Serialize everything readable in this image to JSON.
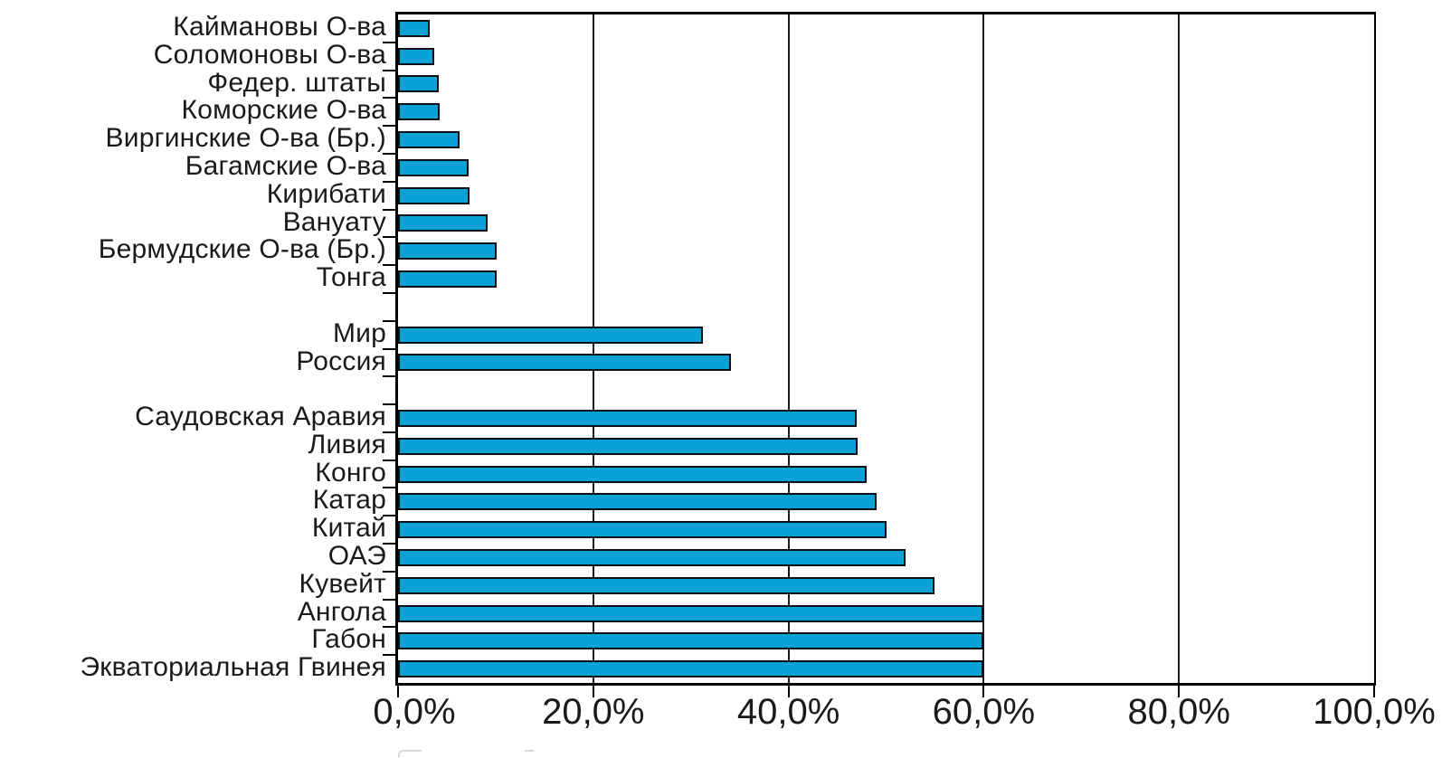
{
  "chart_data": {
    "type": "bar",
    "orientation": "horizontal",
    "title": "",
    "xlabel": "",
    "ylabel": "",
    "unit": "percent",
    "xlim": [
      0,
      100
    ],
    "grid": "vertical-gridlines-every-20pct",
    "legend": "none",
    "bar_color": "#0aa1d7",
    "bar_border_color": "#0c1117",
    "x_ticks": [
      {
        "value": 0,
        "label": "0,0%"
      },
      {
        "value": 20,
        "label": "20,0%"
      },
      {
        "value": 40,
        "label": "40,0%"
      },
      {
        "value": 60,
        "label": "60,0%"
      },
      {
        "value": 80,
        "label": "80,0%"
      },
      {
        "value": 100,
        "label": "100,0%"
      }
    ],
    "rows": [
      {
        "label": "Каймановы О-ва",
        "value": 3.2,
        "spacer": false
      },
      {
        "label": "Соломоновы О-ва",
        "value": 3.7,
        "spacer": false
      },
      {
        "label": "Федер. штаты",
        "value": 4.2,
        "spacer": false
      },
      {
        "label": "Коморские О-ва",
        "value": 4.3,
        "spacer": false
      },
      {
        "label": "Виргинские О-ва (Бр.)",
        "value": 6.3,
        "spacer": false
      },
      {
        "label": "Багамские О-ва",
        "value": 7.2,
        "spacer": false
      },
      {
        "label": "Кирибати",
        "value": 7.3,
        "spacer": false
      },
      {
        "label": "Вануату",
        "value": 9.2,
        "spacer": false
      },
      {
        "label": "Бермудские О-ва (Бр.)",
        "value": 10.1,
        "spacer": false
      },
      {
        "label": "Тонга",
        "value": 10.1,
        "spacer": false
      },
      {
        "label": "",
        "value": null,
        "spacer": true
      },
      {
        "label": "Мир",
        "value": 31.2,
        "spacer": false
      },
      {
        "label": "Россия",
        "value": 34.1,
        "spacer": false
      },
      {
        "label": "",
        "value": null,
        "spacer": true
      },
      {
        "label": "Саудовская Аравия",
        "value": 47.0,
        "spacer": false
      },
      {
        "label": "Ливия",
        "value": 47.1,
        "spacer": false
      },
      {
        "label": "Конго",
        "value": 48.0,
        "spacer": false
      },
      {
        "label": "Катар",
        "value": 49.0,
        "spacer": false
      },
      {
        "label": "Китай",
        "value": 50.0,
        "spacer": false
      },
      {
        "label": "ОАЭ",
        "value": 52.0,
        "spacer": false
      },
      {
        "label": "Кувейт",
        "value": 55.0,
        "spacer": false
      },
      {
        "label": "Ангола",
        "value": 60.0,
        "spacer": false
      },
      {
        "label": "Габон",
        "value": 60.0,
        "spacer": false
      },
      {
        "label": "Экваториальная Гвинея",
        "value": 60.0,
        "spacer": false
      }
    ]
  }
}
